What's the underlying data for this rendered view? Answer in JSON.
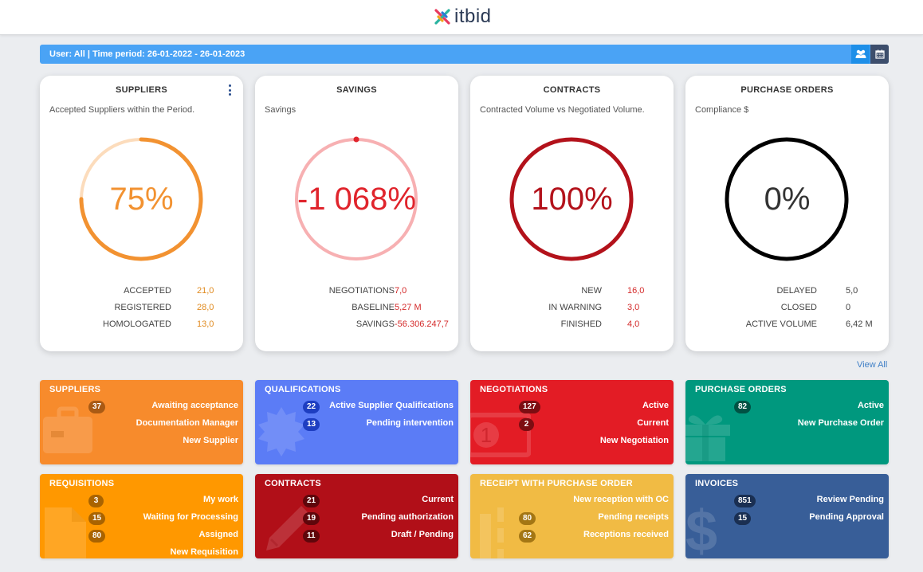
{
  "header": {
    "logo_text": "itbid"
  },
  "filter": {
    "text": "User: All | Time period: 26-01-2022 - 26-01-2023",
    "users_icon": "users-icon",
    "calendar_icon": "calendar-icon"
  },
  "cards": [
    {
      "title": "SUPPLIERS",
      "subtitle": "Accepted Suppliers within the Period.",
      "value": "75%",
      "percent": 75,
      "color": "#f29231",
      "track": "#fcdcbc",
      "stats": [
        {
          "label": "ACCEPTED",
          "value": "21,0"
        },
        {
          "label": "REGISTERED",
          "value": "28,0"
        },
        {
          "label": "HOMOLOGATED",
          "value": "13,0"
        }
      ]
    },
    {
      "title": "SAVINGS",
      "subtitle": "Savings",
      "value": "-1 068%",
      "percent": 0,
      "color": "#e0242c",
      "track": "#f7b0b2",
      "stats": [
        {
          "label": "NEGOTIATIONS",
          "value": "7,0"
        },
        {
          "label": "BASELINE",
          "value": "5,27 M"
        },
        {
          "label": "SAVINGS",
          "value": "-56.306.247,7"
        }
      ]
    },
    {
      "title": "CONTRACTS",
      "subtitle": "Contracted Volume vs Negotiated Volume.",
      "value": "100%",
      "percent": 100,
      "color": "#b3121b",
      "track": "#b3121b",
      "stats": [
        {
          "label": "NEW",
          "value": "16,0"
        },
        {
          "label": "IN WARNING",
          "value": "3,0"
        },
        {
          "label": "FINISHED",
          "value": "4,0"
        }
      ]
    },
    {
      "title": "PURCHASE ORDERS",
      "subtitle": "Compliance $",
      "value": "0%",
      "percent": 0,
      "color": "#000000",
      "track": "#000000",
      "stats": [
        {
          "label": "DELAYED",
          "value": "5,0"
        },
        {
          "label": "CLOSED",
          "value": "0"
        },
        {
          "label": "ACTIVE VOLUME",
          "value": "6,42 M"
        }
      ]
    }
  ],
  "view_all": "View All",
  "tiles": [
    {
      "title": "SUPPLIERS",
      "color": "#f78b2c",
      "badge_bg": "#a95a14",
      "icon": "briefcase-icon",
      "items": [
        {
          "count": "37",
          "label": "Awaiting acceptance"
        },
        {
          "count": "",
          "label": "Documentation Manager"
        },
        {
          "count": "",
          "label": "New Supplier"
        }
      ]
    },
    {
      "title": "QUALIFICATIONS",
      "color": "#5b7cf6",
      "badge_bg": "#1e3ec1",
      "icon": "certificate-icon",
      "items": [
        {
          "count": "22",
          "label": "Active Supplier Qualifications"
        },
        {
          "count": "13",
          "label": "Pending intervention"
        }
      ]
    },
    {
      "title": "NEGOTIATIONS",
      "color": "#e31c25",
      "badge_bg": "#7d0d12",
      "icon": "money-icon",
      "items": [
        {
          "count": "127",
          "label": "Active"
        },
        {
          "count": "2",
          "label": "Current"
        },
        {
          "count": "",
          "label": "New Negotiation"
        }
      ]
    },
    {
      "title": "PURCHASE ORDERS",
      "color": "#00987e",
      "badge_bg": "#005244",
      "icon": "gift-icon",
      "items": [
        {
          "count": "82",
          "label": "Active"
        },
        {
          "count": "",
          "label": "New Purchase Order"
        }
      ]
    },
    {
      "title": "REQUISITIONS",
      "color": "#ff9800",
      "badge_bg": "#a96300",
      "icon": "file-icon",
      "items": [
        {
          "count": "3",
          "label": "My work"
        },
        {
          "count": "15",
          "label": "Waiting for Processing"
        },
        {
          "count": "80",
          "label": "Assigned"
        },
        {
          "count": "",
          "label": "New Requisition"
        }
      ]
    },
    {
      "title": "CONTRACTS",
      "color": "#b10f18",
      "badge_bg": "#5f060b",
      "icon": "pen-icon",
      "items": [
        {
          "count": "21",
          "label": "Current"
        },
        {
          "count": "19",
          "label": "Pending authorization"
        },
        {
          "count": "11",
          "label": "Draft / Pending"
        }
      ]
    },
    {
      "title": "RECEIPT WITH PURCHASE ORDER",
      "color": "#f1bb44",
      "badge_bg": "#a47614",
      "icon": "truck-icon",
      "items": [
        {
          "count": "",
          "label": "New reception with OC"
        },
        {
          "count": "80",
          "label": "Pending receipts"
        },
        {
          "count": "62",
          "label": "Receptions received"
        }
      ]
    },
    {
      "title": "INVOICES",
      "color": "#385e98",
      "badge_bg": "#1a2f52",
      "icon": "dollar-icon",
      "items": [
        {
          "count": "851",
          "label": "Review Pending"
        },
        {
          "count": "15",
          "label": "Pending Approval"
        }
      ]
    }
  ]
}
